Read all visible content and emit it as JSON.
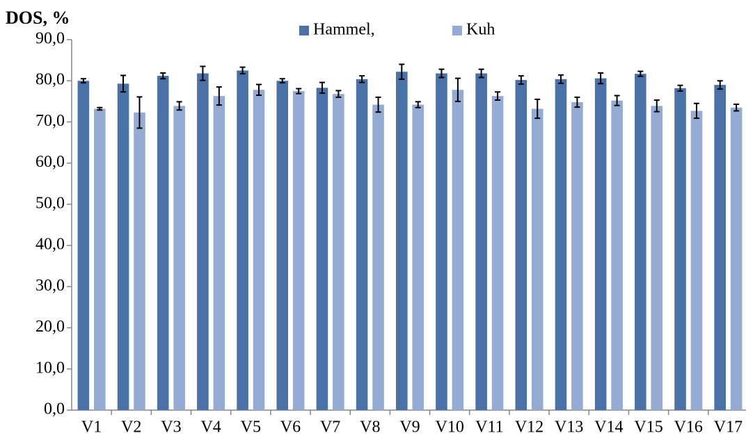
{
  "chart_data": {
    "type": "bar",
    "title": "DOS, %",
    "categories": [
      "V1",
      "V2",
      "V3",
      "V4",
      "V5",
      "V6",
      "V7",
      "V8",
      "V9",
      "V10",
      "V11",
      "V12",
      "V13",
      "V14",
      "V15",
      "V16",
      "V17"
    ],
    "series": [
      {
        "name": "Hammel,",
        "color": "#4a72a8",
        "values": [
          80.0,
          79.3,
          81.2,
          81.8,
          82.5,
          80.0,
          78.3,
          80.4,
          82.2,
          81.8,
          81.8,
          80.2,
          80.4,
          80.6,
          81.7,
          78.2,
          79.0
        ],
        "errors": [
          0.5,
          2.0,
          0.7,
          1.7,
          0.8,
          0.5,
          1.3,
          0.8,
          1.8,
          1.0,
          1.0,
          1.0,
          1.0,
          1.3,
          0.6,
          0.7,
          1.0
        ]
      },
      {
        "name": "Kuh",
        "color": "#94abd3",
        "values": [
          73.2,
          72.3,
          73.9,
          76.3,
          77.8,
          77.5,
          76.8,
          74.2,
          74.2,
          77.8,
          76.3,
          73.2,
          74.8,
          75.2,
          73.9,
          72.7,
          73.5
        ],
        "errors": [
          0.3,
          3.8,
          1.0,
          2.2,
          1.3,
          0.6,
          0.8,
          1.8,
          0.7,
          2.8,
          1.0,
          2.3,
          1.2,
          1.2,
          1.4,
          1.8,
          0.8
        ]
      }
    ],
    "ylim": [
      0,
      90
    ],
    "yticks": [
      {
        "value": 0,
        "label": "0,0"
      },
      {
        "value": 10,
        "label": "10,0"
      },
      {
        "value": 20,
        "label": "20,0"
      },
      {
        "value": 30,
        "label": "30,0"
      },
      {
        "value": 40,
        "label": "40,0"
      },
      {
        "value": 50,
        "label": "50,0"
      },
      {
        "value": 60,
        "label": "60,0"
      },
      {
        "value": 70,
        "label": "70,0"
      },
      {
        "value": 80,
        "label": "80,0"
      },
      {
        "value": 90,
        "label": "90,0"
      }
    ],
    "grid": false
  }
}
